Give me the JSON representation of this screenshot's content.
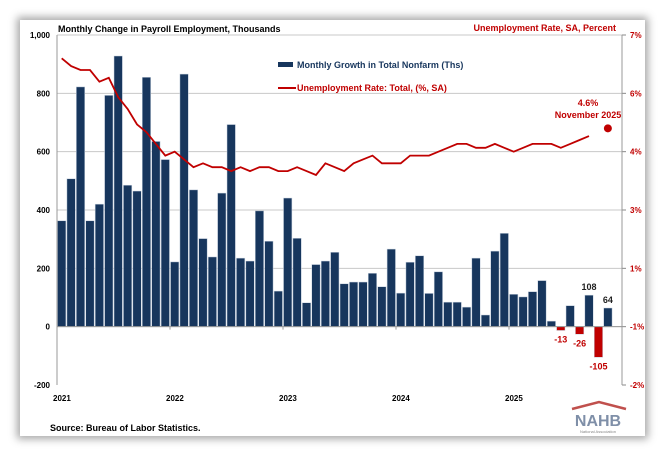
{
  "chart_data": {
    "type": "bar+line",
    "title_left": "Monthly Change in Payroll Employment, Thousands",
    "title_right": "Unemployment Rate, SA, Percent",
    "source": "Source: Bureau of Labor Statistics.",
    "x_start": "2021-01",
    "x_tick_labels": [
      "2021",
      "2022",
      "2023",
      "2024",
      "2025"
    ],
    "left_axis": {
      "ylim": [
        -200,
        1000
      ],
      "ticks": [
        -200,
        0,
        200,
        400,
        600,
        800,
        1000
      ],
      "tick_labels": [
        "-200",
        "0",
        "200",
        "400",
        "600",
        "800",
        "1,000"
      ]
    },
    "right_axis": {
      "ylim": [
        -2,
        7
      ],
      "ticks": [
        -2,
        -0.5,
        1,
        2.5,
        4,
        5.5,
        7
      ],
      "tick_labels": [
        "-2%",
        "-1%",
        "1%",
        "3%",
        "4%",
        "6%",
        "7%"
      ]
    },
    "grid": true,
    "legend_position": "top-center",
    "series": [
      {
        "name": "Monthly Growth in Total Nonfarm (Ths)",
        "type": "bar",
        "axis": "left",
        "color": "#17365d",
        "negative_color": "#c00000",
        "values": [
          363,
          507,
          822,
          363,
          420,
          793,
          928,
          485,
          465,
          855,
          635,
          573,
          222,
          866,
          469,
          302,
          239,
          458,
          693,
          235,
          225,
          397,
          293,
          122,
          441,
          303,
          82,
          213,
          225,
          255,
          147,
          153,
          153,
          183,
          137,
          266,
          115,
          221,
          243,
          114,
          188,
          84,
          84,
          67,
          235,
          40,
          259,
          320,
          111,
          102,
          120,
          158,
          19,
          -13,
          72,
          -26,
          108,
          -105,
          64
        ]
      },
      {
        "name": "Unemployment Rate: Total, (%, SA)",
        "type": "line",
        "axis": "right",
        "color": "#c00000",
        "values": [
          6.4,
          6.2,
          6.1,
          6.1,
          5.8,
          5.9,
          5.4,
          5.1,
          4.7,
          4.5,
          4.2,
          3.9,
          4.0,
          3.8,
          3.6,
          3.7,
          3.6,
          3.6,
          3.5,
          3.6,
          3.5,
          3.6,
          3.6,
          3.5,
          3.5,
          3.6,
          3.5,
          3.4,
          3.7,
          3.6,
          3.5,
          3.7,
          3.8,
          3.9,
          3.7,
          3.7,
          3.7,
          3.9,
          3.9,
          3.9,
          4.0,
          4.1,
          4.2,
          4.2,
          4.1,
          4.1,
          4.2,
          4.1,
          4.0,
          4.1,
          4.2,
          4.2,
          4.2,
          4.1,
          4.2,
          4.3,
          4.4,
          null,
          4.6
        ]
      }
    ],
    "bar_data_labels": [
      {
        "month_index": 53,
        "text": "-13"
      },
      {
        "month_index": 55,
        "text": "-26"
      },
      {
        "month_index": 56,
        "text": "108"
      },
      {
        "month_index": 57,
        "text": "-105"
      },
      {
        "month_index": 58,
        "text": "64"
      }
    ],
    "annotation": {
      "value_text": "4.6%",
      "date_text": "November 2025",
      "month_index": 58,
      "value": 4.6
    }
  },
  "logo": {
    "text": "NAHB",
    "subtitle": "National Association of Home Builders"
  }
}
